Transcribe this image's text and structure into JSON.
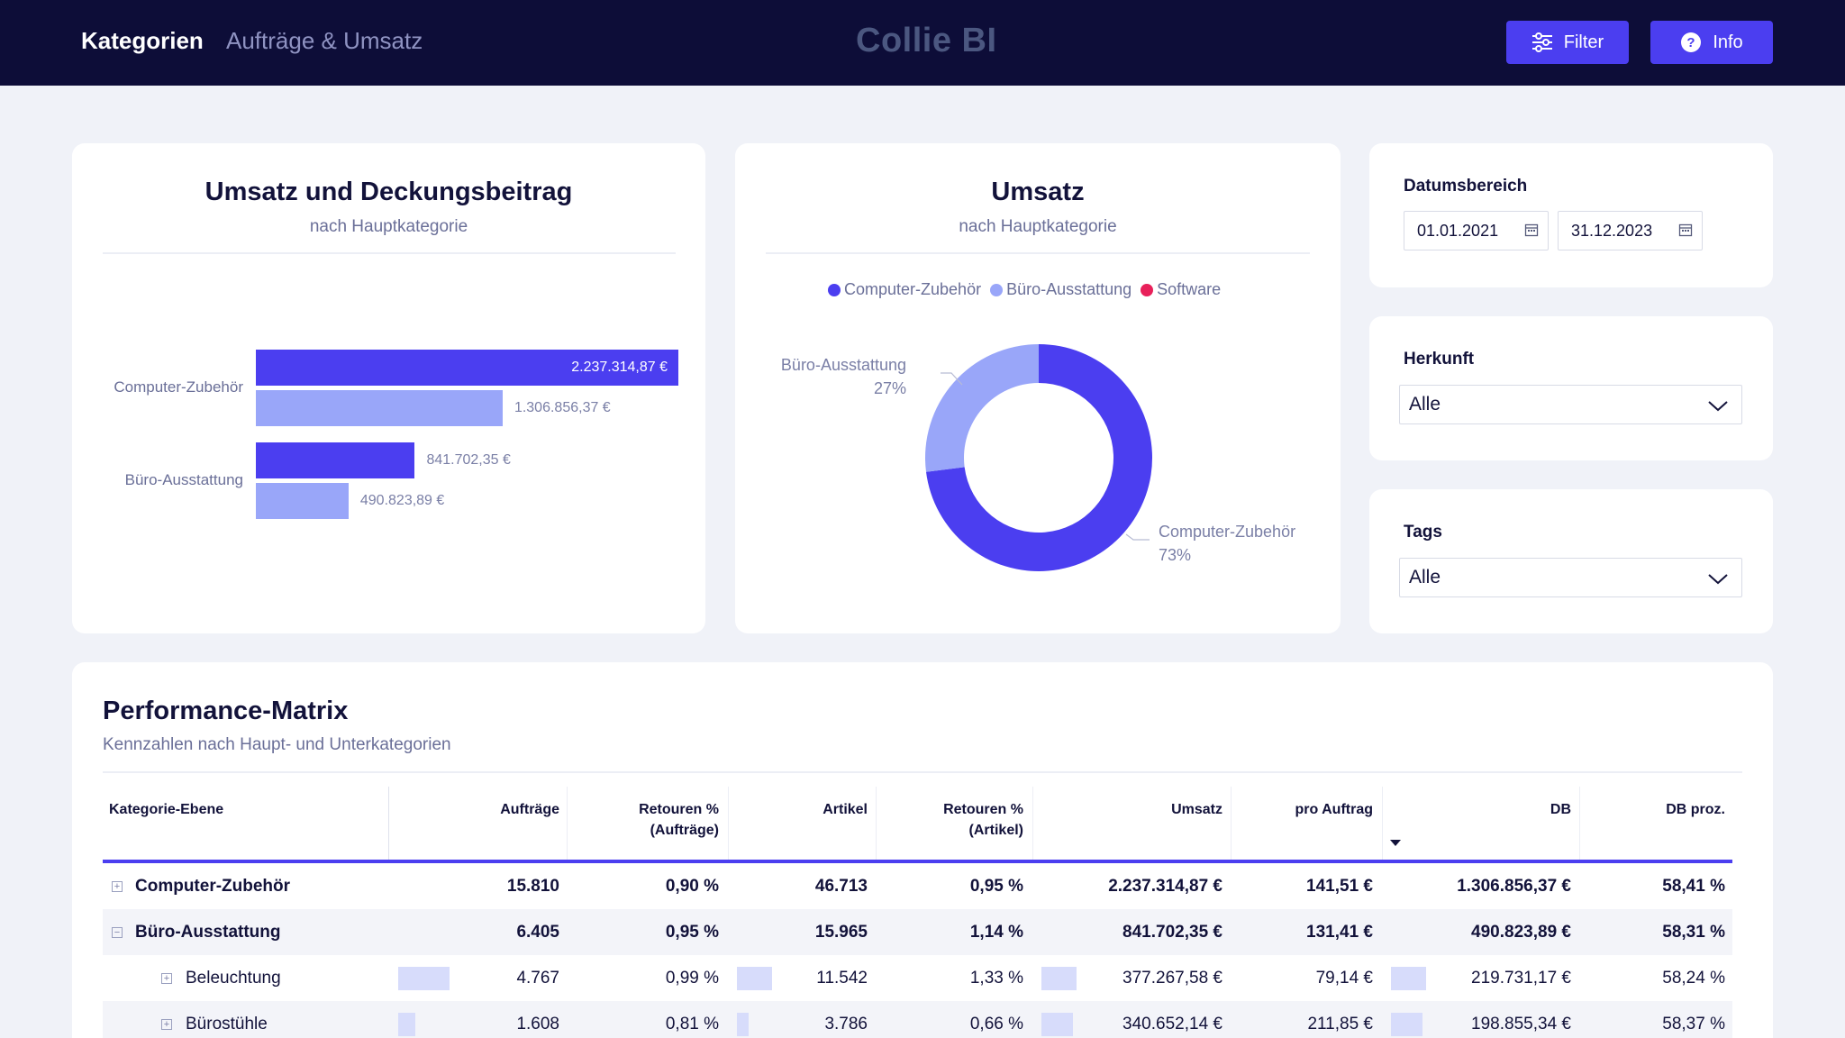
{
  "nav": {
    "tab_active": "Kategorien",
    "tab_inactive": "Aufträge & Umsatz",
    "brand": "Collie BI",
    "filter_button": "Filter",
    "info_button": "Info"
  },
  "bar_card": {
    "title": "Umsatz und Deckungsbeitrag",
    "subtitle": "nach Hauptkategorie"
  },
  "donut_card": {
    "title": "Umsatz",
    "subtitle": "nach Hauptkategorie",
    "legend": [
      "Computer-Zubehör",
      "Büro-Ausstattung",
      "Software"
    ]
  },
  "chart_data": [
    {
      "type": "bar",
      "orientation": "horizontal",
      "title": "Umsatz und Deckungsbeitrag",
      "subtitle": "nach Hauptkategorie",
      "categories": [
        "Computer-Zubehör",
        "Büro-Ausstattung"
      ],
      "series": [
        {
          "values": [
            2237314.87,
            841702.35
          ],
          "labels": [
            "2.237.314,87 €",
            "841.702,35 €"
          ],
          "color": "#4b3ef0"
        },
        {
          "values": [
            1306856.37,
            490823.89
          ],
          "labels": [
            "1.306.856,37 €",
            "490.823,89 €"
          ],
          "color": "#99a6f9"
        }
      ],
      "xlim": [
        0,
        2237314.87
      ]
    },
    {
      "type": "pie",
      "donut": true,
      "title": "Umsatz",
      "subtitle": "nach Hauptkategorie",
      "categories": [
        "Computer-Zubehör",
        "Büro-Ausstattung",
        "Software"
      ],
      "values": [
        73,
        27,
        0
      ],
      "value_labels": [
        "73%",
        "27%",
        ""
      ],
      "colors": [
        "#4b3ef0",
        "#99a6f9",
        "#e8205a"
      ],
      "legend_position": "top"
    }
  ],
  "filters": {
    "date_label": "Datumsbereich",
    "date_from": "01.01.2021",
    "date_to": "31.12.2023",
    "herkunft_label": "Herkunft",
    "herkunft_value": "Alle",
    "tags_label": "Tags",
    "tags_value": "Alle"
  },
  "matrix": {
    "title": "Performance-Matrix",
    "subtitle": "Kennzahlen nach Haupt- und Unterkategorien",
    "headers": {
      "kategorie": "Kategorie-Ebene",
      "auftraege": "Aufträge",
      "retouren_auftraege_1": "Retouren %",
      "retouren_auftraege_2": "(Aufträge)",
      "artikel": "Artikel",
      "retouren_artikel_1": "Retouren %",
      "retouren_artikel_2": "(Artikel)",
      "umsatz": "Umsatz",
      "pro_auftrag": "pro Auftrag",
      "db": "DB",
      "db_proz": "DB proz."
    },
    "rows": [
      {
        "name": "Computer-Zubehör",
        "expander": "+",
        "auftraege": "15.810",
        "ret_auf": "0,90 %",
        "artikel": "46.713",
        "ret_art": "0,95 %",
        "umsatz": "2.237.314,87 €",
        "pro_auftrag": "141,51 €",
        "db": "1.306.856,37 €",
        "db_proz": "58,41 %"
      },
      {
        "name": "Büro-Ausstattung",
        "expander": "−",
        "auftraege": "6.405",
        "ret_auf": "0,95 %",
        "artikel": "15.965",
        "ret_art": "1,14 %",
        "umsatz": "841.702,35 €",
        "pro_auftrag": "131,41 €",
        "db": "490.823,89 €",
        "db_proz": "58,31 %"
      },
      {
        "name": "Beleuchtung",
        "expander": "+",
        "auftraege": "4.767",
        "ret_auf": "0,99 %",
        "artikel": "11.542",
        "ret_art": "1,33 %",
        "umsatz": "377.267,58 €",
        "pro_auftrag": "79,14 €",
        "db": "219.731,17 €",
        "db_proz": "58,24 %"
      },
      {
        "name": "Bürostühle",
        "expander": "+",
        "auftraege": "1.608",
        "ret_auf": "0,81 %",
        "artikel": "3.786",
        "ret_art": "0,66 %",
        "umsatz": "340.652,14 €",
        "pro_auftrag": "211,85 €",
        "db": "198.855,34 €",
        "db_proz": "58,37 %"
      }
    ]
  }
}
